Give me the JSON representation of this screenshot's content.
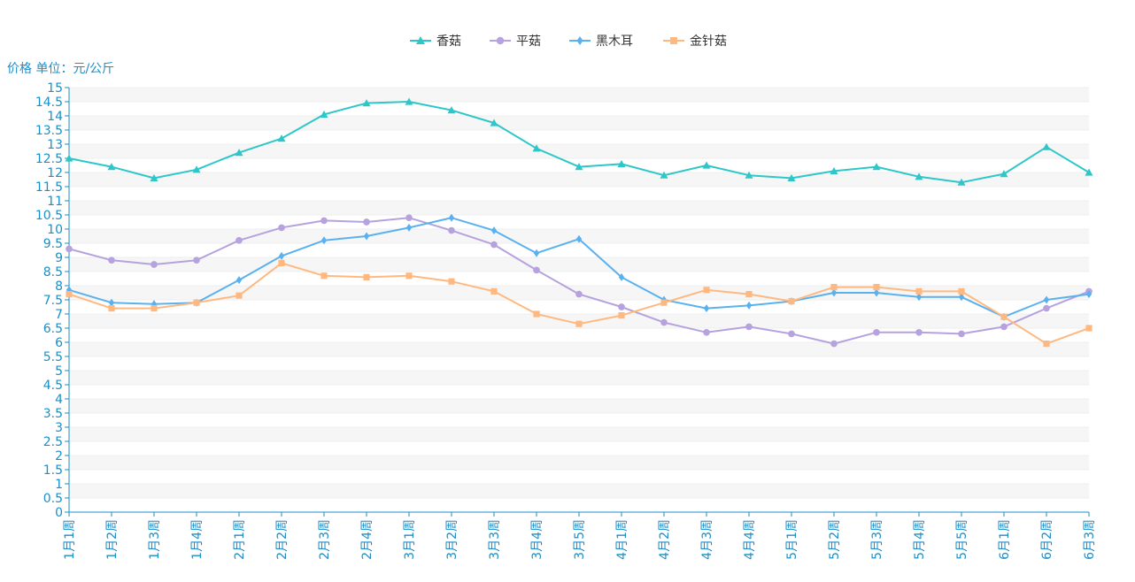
{
  "chart_data": {
    "type": "line",
    "ylabel": "价格 单位：元/公斤",
    "ylim": [
      0,
      15
    ],
    "y_ticks": [
      "0",
      "0.5",
      "1",
      "1.5",
      "2",
      "2.5",
      "3",
      "3.5",
      "4",
      "4.5",
      "5",
      "5.5",
      "6",
      "6.5",
      "7",
      "7.5",
      "8",
      "8.5",
      "9",
      "9.5",
      "10",
      "10.5",
      "11",
      "11.5",
      "12",
      "12.5",
      "13",
      "13.5",
      "14",
      "14.5",
      "15"
    ],
    "categories": [
      "1月1周",
      "1月2周",
      "1月3周",
      "1月4周",
      "2月1周",
      "2月2周",
      "2月3周",
      "2月4周",
      "3月1周",
      "3月2周",
      "3月3周",
      "3月4周",
      "3月5周",
      "4月1周",
      "4月2周",
      "4月3周",
      "4月4周",
      "5月1周",
      "5月2周",
      "5月3周",
      "5月4周",
      "5月5周",
      "6月1周",
      "6月2周",
      "6月3周"
    ],
    "legend_position": "top-center",
    "series": [
      {
        "name": "香菇",
        "color": "#2ec7c9",
        "marker": "triangle",
        "values": [
          12.5,
          12.2,
          11.8,
          12.1,
          12.7,
          13.2,
          14.05,
          14.45,
          14.5,
          14.2,
          13.75,
          12.85,
          12.2,
          12.3,
          11.9,
          12.25,
          11.9,
          11.8,
          12.05,
          12.2,
          11.85,
          11.65,
          11.95,
          12.9,
          12.0
        ]
      },
      {
        "name": "平菇",
        "color": "#b6a2de",
        "marker": "circle",
        "values": [
          9.3,
          8.9,
          8.75,
          8.9,
          9.6,
          10.05,
          10.3,
          10.25,
          10.4,
          9.95,
          9.45,
          8.55,
          7.7,
          7.25,
          6.7,
          6.35,
          6.55,
          6.3,
          5.95,
          6.35,
          6.35,
          6.3,
          6.55,
          7.2,
          7.8
        ]
      },
      {
        "name": "黑木耳",
        "color": "#5ab1ef",
        "marker": "diamond",
        "values": [
          7.85,
          7.4,
          7.35,
          7.4,
          8.2,
          9.05,
          9.6,
          9.75,
          10.05,
          10.4,
          9.95,
          9.15,
          9.65,
          8.3,
          7.5,
          7.2,
          7.3,
          7.45,
          7.75,
          7.75,
          7.6,
          7.6,
          6.9,
          7.5,
          7.7
        ]
      },
      {
        "name": "金针菇",
        "color": "#ffb980",
        "marker": "square",
        "values": [
          7.7,
          7.2,
          7.2,
          7.4,
          7.65,
          8.8,
          8.35,
          8.3,
          8.35,
          8.15,
          7.8,
          7.0,
          6.65,
          6.95,
          7.4,
          7.85,
          7.7,
          7.45,
          7.95,
          7.95,
          7.8,
          7.8,
          6.9,
          5.95,
          6.5
        ]
      }
    ]
  }
}
